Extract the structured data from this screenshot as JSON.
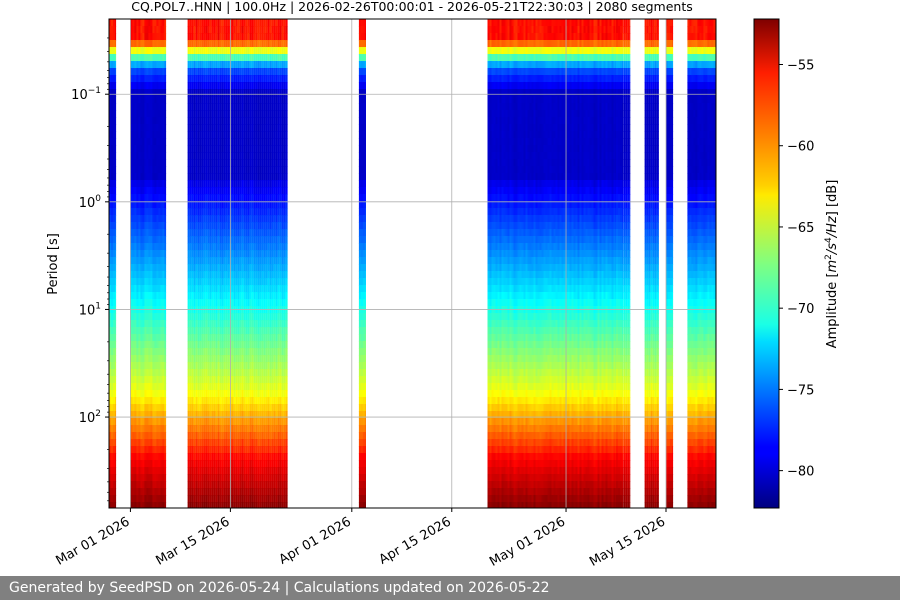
{
  "chart_data": {
    "type": "heatmap",
    "title": "CQ.POL7..HNN | 100.0Hz | 2026-02-26T00:00:01 - 2026-05-21T22:30:03 | 2080 segments",
    "xlabel": "",
    "ylabel": "Period [s]",
    "y_scale": "log",
    "y_inverted": true,
    "y_range_s": [
      0.02,
      700
    ],
    "x_range": [
      "2026-02-26",
      "2026-05-22"
    ],
    "x_ticks": [
      "Mar 01 2026",
      "Mar 15 2026",
      "Apr 01 2026",
      "Apr 15 2026",
      "May 01 2026",
      "May 15 2026"
    ],
    "x_tick_dates": [
      "2026-03-01",
      "2026-03-15",
      "2026-04-01",
      "2026-04-15",
      "2026-05-01",
      "2026-05-15"
    ],
    "y_ticks": [
      {
        "base": "10",
        "exp": "−1",
        "value": 0.1
      },
      {
        "base": "10",
        "exp": "0",
        "value": 1
      },
      {
        "base": "10",
        "exp": "1",
        "value": 10
      },
      {
        "base": "10",
        "exp": "2",
        "value": 100
      }
    ],
    "grid": true,
    "colorbar": {
      "label": "Amplitude [m²/s⁴/Hz] [dB]",
      "label_main": "Amplitude [",
      "label_unit_a": "m",
      "label_unit_a_exp": "2",
      "label_unit_b": "/s",
      "label_unit_b_exp": "4",
      "label_unit_c": "/Hz",
      "label_tail": "] [dB]",
      "colormap": "jet",
      "range_db": [
        -82.3,
        -52.2
      ],
      "ticks": [
        "−55",
        "−60",
        "−65",
        "−70",
        "−75",
        "−80"
      ],
      "tick_values": [
        -55,
        -60,
        -65,
        -70,
        -75,
        -80
      ]
    },
    "data_coverage": [
      {
        "start": "2026-02-26",
        "end": "2026-02-27"
      },
      {
        "start": "2026-03-01",
        "end": "2026-03-06"
      },
      {
        "start": "2026-03-09",
        "end": "2026-03-23"
      },
      {
        "start": "2026-04-02",
        "end": "2026-04-03"
      },
      {
        "start": "2026-04-20",
        "end": "2026-05-08"
      },
      {
        "start": "2026-05-08",
        "end": "2026-05-09"
      },
      {
        "start": "2026-05-09",
        "end": "2026-05-10"
      },
      {
        "start": "2026-05-12",
        "end": "2026-05-14"
      },
      {
        "start": "2026-05-15",
        "end": "2026-05-16"
      },
      {
        "start": "2026-05-18",
        "end": "2026-05-22"
      }
    ]
  },
  "footer": {
    "text": "Generated by SeedPSD on 2026-05-24 | Calculations updated on 2026-05-22"
  }
}
